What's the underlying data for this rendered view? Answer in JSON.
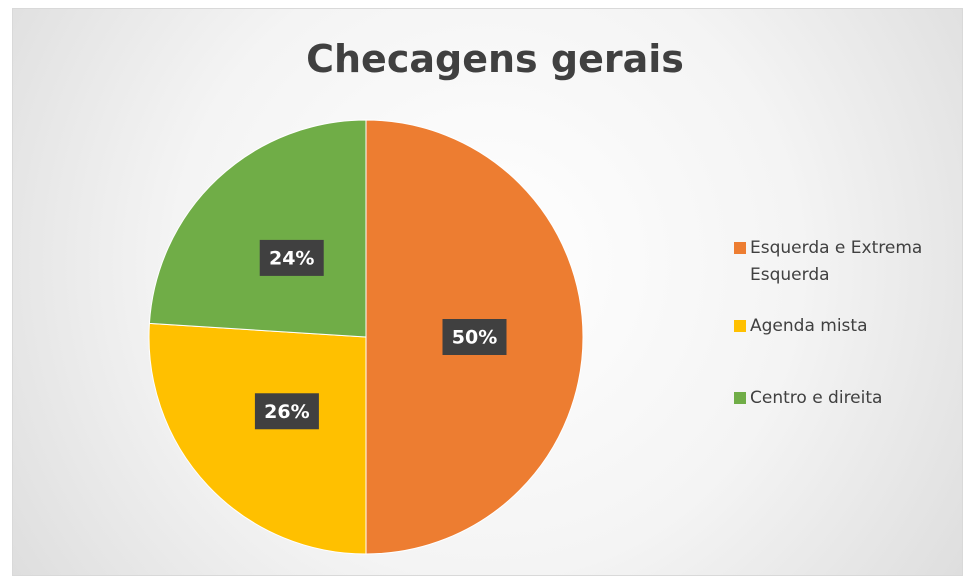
{
  "chart_data": {
    "type": "pie",
    "title": "Checagens gerais",
    "categories": [
      "Esquerda e Extrema Esquerda",
      "Agenda mista",
      "Centro e direita"
    ],
    "values": [
      50,
      26,
      24
    ],
    "value_labels": [
      "50%",
      "26%",
      "24%"
    ],
    "colors": [
      "#ED7D31",
      "#FFC000",
      "#70AD47"
    ],
    "legend": "right"
  }
}
